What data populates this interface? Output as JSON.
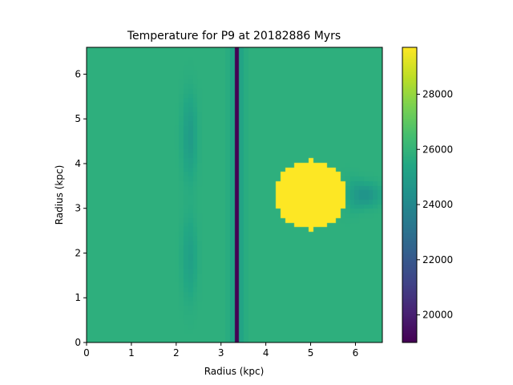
{
  "chart_data": {
    "type": "heatmap",
    "title": "Temperature for P9 at 20182886 Myrs",
    "xlabel": "Radius (kpc)",
    "ylabel": "Radius (kpc)",
    "xlim": [
      0,
      6.6
    ],
    "ylim": [
      0,
      6.6
    ],
    "xticks": [
      0,
      1,
      2,
      3,
      4,
      5,
      6
    ],
    "yticks": [
      0,
      1,
      2,
      3,
      4,
      5,
      6
    ],
    "colorbar": {
      "min": 19000,
      "max": 29700,
      "ticks": [
        20000,
        22000,
        24000,
        26000,
        28000
      ],
      "colormap": "viridis"
    },
    "field": {
      "background_value": 25800,
      "vertical_band": {
        "x_center": 3.33,
        "half_width": 0.07,
        "value": 19000
      },
      "band_shoulder": {
        "x_from": 3.1,
        "x_to": 3.6,
        "value": 24900
      },
      "hot_clump": {
        "x_center": 5.0,
        "y_center": 3.3,
        "radius": 0.78,
        "value": 29700
      },
      "cool_wake": {
        "x_center": 6.2,
        "y_center": 3.3,
        "value": 24500
      },
      "faint_streaks": [
        {
          "x_center": 2.3,
          "y_center": 4.6,
          "value": 24900
        },
        {
          "x_center": 2.3,
          "y_center": 1.9,
          "value": 25100
        }
      ]
    }
  },
  "colors": {
    "axis": "#000000",
    "background": "#ffffff"
  }
}
